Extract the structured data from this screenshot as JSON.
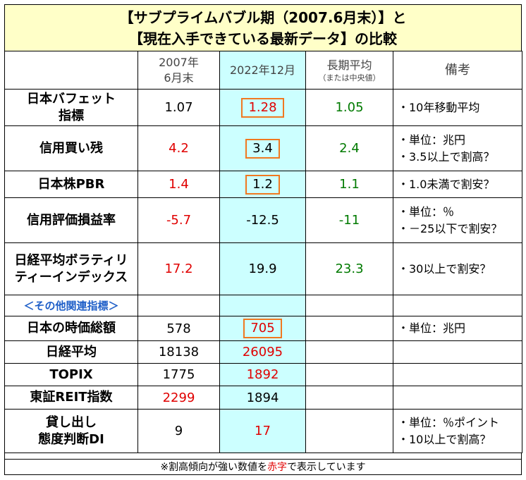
{
  "title": {
    "line1": "【サブプライムバブル期（2007.6月末）】と",
    "line2": "【現在入手できている最新データ】の比較"
  },
  "header": {
    "col1_line1": "2007年",
    "col1_line2": "6月末",
    "col2": "2022年12月",
    "col3_line1": "長期平均",
    "col3_line2": "（または中央値）",
    "col4": "備考"
  },
  "rows": [
    {
      "label_l1": "日本バフェット",
      "label_l2": "指標",
      "v2007": "1.07",
      "v2022": "1.28",
      "avg": "1.05",
      "note_l1": "・10年移動平均",
      "note_l2": ""
    },
    {
      "label_l1": "信用買い残",
      "label_l2": "",
      "v2007": "4.2",
      "v2022": "3.4",
      "avg": "2.4",
      "note_l1": "・単位：兆円",
      "note_l2": "・3.5以上で割高？"
    },
    {
      "label_l1": "日本株PBR",
      "label_l2": "",
      "v2007": "1.4",
      "v2022": "1.2",
      "avg": "1.1",
      "note_l1": "・1.0未満で割安？",
      "note_l2": ""
    },
    {
      "label_l1": "信用評価損益率",
      "label_l2": "",
      "v2007": "-5.7",
      "v2022": "-12.5",
      "avg": "-11",
      "note_l1": "・単位：％",
      "note_l2": "・－25以下で割安？"
    },
    {
      "label_l1": "日経平均ボラティリ",
      "label_l2": "ティーインデックス",
      "v2007": "17.2",
      "v2022": "19.9",
      "avg": "23.3",
      "note_l1": "・30以上で割安？",
      "note_l2": ""
    }
  ],
  "section_label": "＜その他関連指標＞",
  "rows2": [
    {
      "label_l1": "日本の時価総額",
      "label_l2": "",
      "v2007": "578",
      "v2022": "705",
      "note_l1": "・単位：兆円",
      "note_l2": ""
    },
    {
      "label_l1": "日経平均",
      "label_l2": "",
      "v2007": "18138",
      "v2022": "26095",
      "note_l1": "",
      "note_l2": ""
    },
    {
      "label_l1": "TOPIX",
      "label_l2": "",
      "v2007": "1775",
      "v2022": "1892",
      "note_l1": "",
      "note_l2": ""
    },
    {
      "label_l1": "東証REIT指数",
      "label_l2": "",
      "v2007": "2299",
      "v2022": "1894",
      "note_l1": "",
      "note_l2": ""
    },
    {
      "label_l1": "貸し出し",
      "label_l2": "態度判断DI",
      "v2007": "9",
      "v2022": "17",
      "note_l1": "・単位：％ポイント",
      "note_l2": "・10以上で割高？"
    }
  ],
  "footer": {
    "prefix": "※割高傾向が強い数値を",
    "red_word": "赤字",
    "suffix": "で表示しています"
  },
  "colors": {
    "title_bg": "#ffffc8",
    "highlight_col": "#ccffff",
    "red": "#e00000",
    "green": "#007a00",
    "blue": "#1f5fc8",
    "box_border": "#f07820"
  }
}
